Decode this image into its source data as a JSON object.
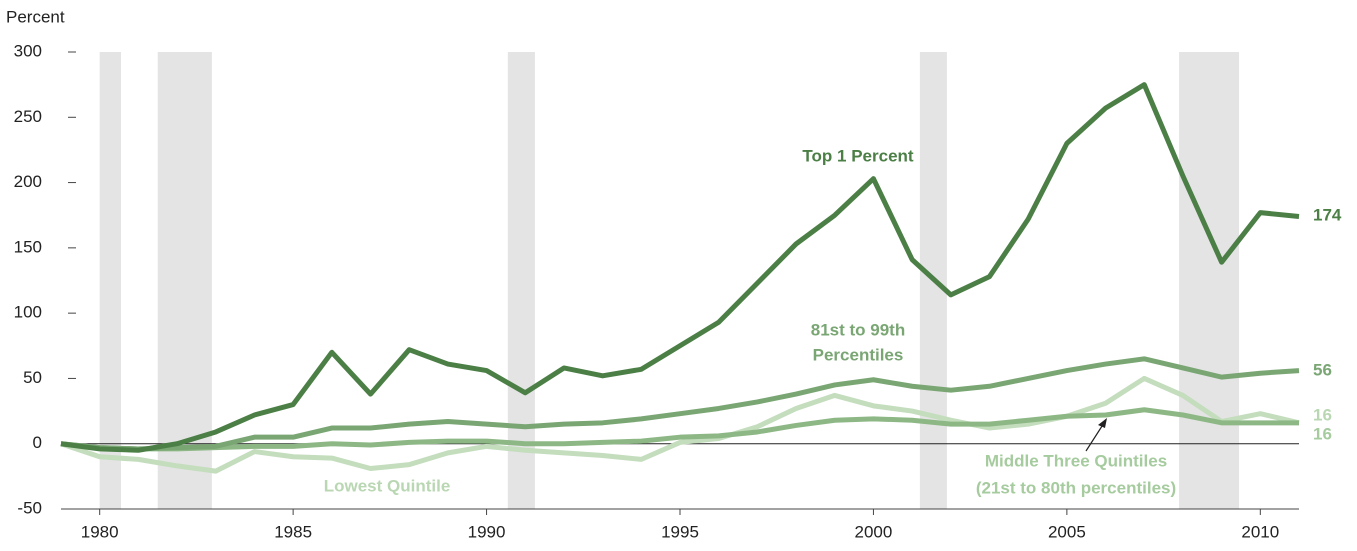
{
  "chart_data": {
    "type": "line",
    "y_axis_label": "Percent",
    "x": [
      1979,
      1980,
      1981,
      1982,
      1983,
      1984,
      1985,
      1986,
      1987,
      1988,
      1989,
      1990,
      1991,
      1992,
      1993,
      1994,
      1995,
      1996,
      1997,
      1998,
      1999,
      2000,
      2001,
      2002,
      2003,
      2004,
      2005,
      2006,
      2007,
      2008,
      2009,
      2010,
      2011
    ],
    "xlim": [
      1979,
      2011
    ],
    "xticks": [
      1980,
      1985,
      1990,
      1995,
      2000,
      2005,
      2010
    ],
    "ylim": [
      -50,
      300
    ],
    "yticks": [
      -50,
      0,
      50,
      100,
      150,
      200,
      250,
      300
    ],
    "shaded_ranges": [
      [
        1980.0,
        1980.55
      ],
      [
        1981.5,
        1982.9
      ],
      [
        1990.55,
        1991.25
      ],
      [
        2001.2,
        2001.9
      ],
      [
        2007.9,
        2009.45
      ]
    ],
    "series": [
      {
        "label": [
          "Top 1 Percent"
        ],
        "color": "#4b7f46",
        "label_color": "#4b7f46",
        "values": [
          0,
          -4,
          -5,
          0,
          9,
          22,
          30,
          70,
          38,
          72,
          61,
          56,
          39,
          58,
          52,
          57,
          75,
          93,
          123,
          153,
          175,
          203,
          141,
          114,
          128,
          172,
          230,
          257,
          275,
          205,
          139,
          177,
          174
        ]
      },
      {
        "label": [
          "81st to 99th",
          "Percentiles"
        ],
        "color": "#7aa674",
        "label_color": "#7aa674",
        "values": [
          0,
          -3,
          -4,
          -3,
          -2,
          5,
          5,
          12,
          12,
          15,
          17,
          15,
          13,
          15,
          16,
          19,
          23,
          27,
          32,
          38,
          45,
          49,
          44,
          41,
          44,
          50,
          56,
          61,
          65,
          58,
          51,
          54,
          56
        ]
      },
      {
        "label": [
          "Middle Three Quintiles",
          "(21st to 80th percentiles)"
        ],
        "color": "#8db886",
        "label_color": "#a5cb9e",
        "values": [
          0,
          -3,
          -4,
          -4,
          -3,
          -2,
          -2,
          0,
          -1,
          1,
          2,
          2,
          0,
          0,
          1,
          2,
          5,
          6,
          9,
          14,
          18,
          19,
          18,
          15,
          15,
          18,
          21,
          22,
          26,
          22,
          16,
          16,
          16
        ]
      },
      {
        "label": [
          "Lowest Quintile"
        ],
        "color": "#c3ddbd",
        "label_color": "#b9d7b3",
        "values": [
          0,
          -10,
          -12,
          -17,
          -21,
          -6,
          -10,
          -11,
          -19,
          -16,
          -7,
          -2,
          -5,
          -7,
          -9,
          -12,
          1,
          4,
          13,
          27,
          37,
          29,
          25,
          18,
          12,
          15,
          21,
          31,
          50,
          37,
          17,
          23,
          16
        ]
      }
    ]
  }
}
